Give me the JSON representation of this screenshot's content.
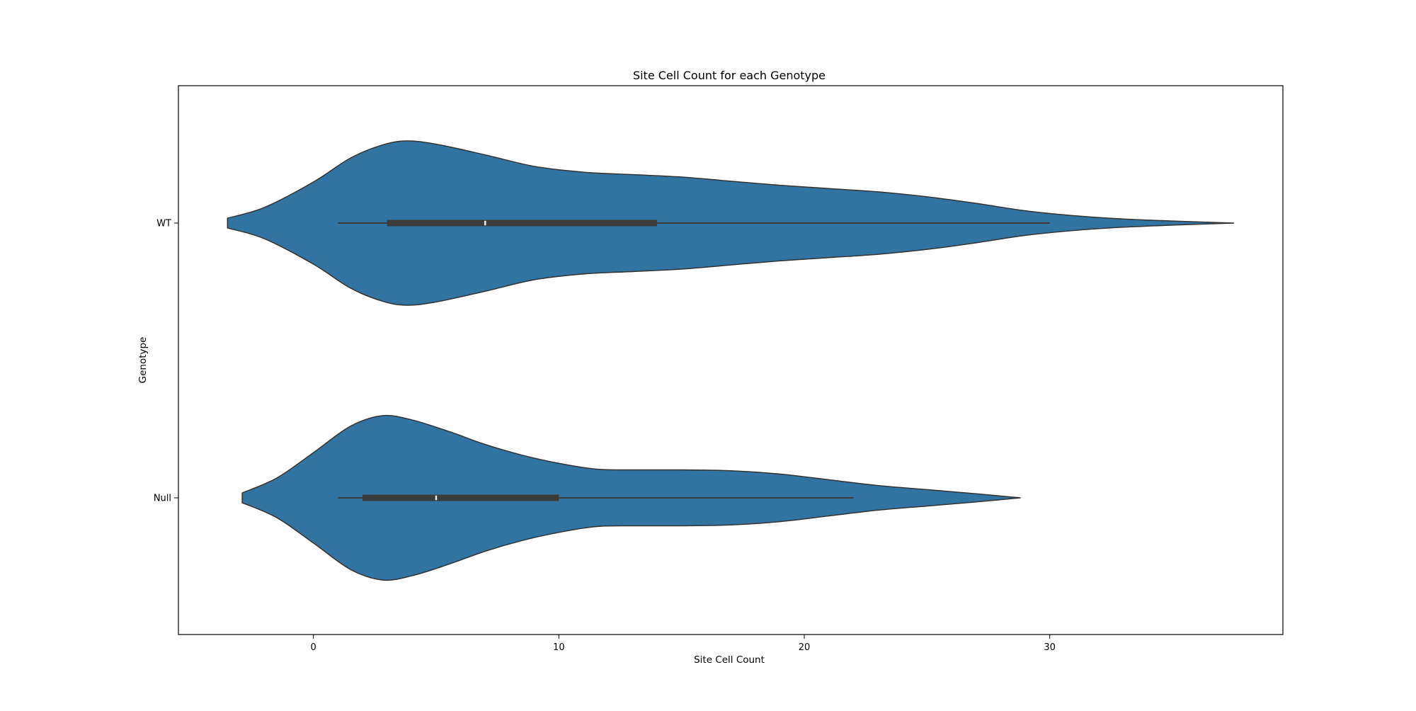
{
  "chart_data": {
    "type": "violin",
    "orientation": "horizontal",
    "title": "Site Cell Count for each Genotype",
    "xlabel": "Site Cell Count",
    "ylabel": "Genotype",
    "xlim": [
      -5.5,
      39.5
    ],
    "xticks": [
      0,
      10,
      20,
      30
    ],
    "categories": [
      "WT",
      "Null"
    ],
    "grid": false,
    "legend": "none",
    "colors": {
      "fill": "#3274a1",
      "outline": "#333333",
      "box": "#3a3a3a",
      "median": "#ffffff",
      "axes": "#000000",
      "background": "#ffffff"
    },
    "violins": [
      {
        "category": "WT",
        "min": 1,
        "q1": 3,
        "median": 7,
        "q3": 14,
        "whisker_high": 30,
        "kde_range": [
          -3.5,
          37.5
        ],
        "density_profile": [
          {
            "x": -3.5,
            "w": 0.06
          },
          {
            "x": -2,
            "w": 0.19
          },
          {
            "x": 0,
            "w": 0.5
          },
          {
            "x": 1.5,
            "w": 0.79
          },
          {
            "x": 2.8,
            "w": 0.95
          },
          {
            "x": 3.8,
            "w": 1.0
          },
          {
            "x": 5,
            "w": 0.96
          },
          {
            "x": 7,
            "w": 0.83
          },
          {
            "x": 9,
            "w": 0.69
          },
          {
            "x": 11,
            "w": 0.62
          },
          {
            "x": 13,
            "w": 0.59
          },
          {
            "x": 15,
            "w": 0.56
          },
          {
            "x": 17,
            "w": 0.51
          },
          {
            "x": 19,
            "w": 0.46
          },
          {
            "x": 21,
            "w": 0.42
          },
          {
            "x": 23,
            "w": 0.38
          },
          {
            "x": 25,
            "w": 0.32
          },
          {
            "x": 27,
            "w": 0.24
          },
          {
            "x": 29,
            "w": 0.15
          },
          {
            "x": 31,
            "w": 0.09
          },
          {
            "x": 33,
            "w": 0.05
          },
          {
            "x": 35,
            "w": 0.025
          },
          {
            "x": 37.5,
            "w": 0.0
          }
        ]
      },
      {
        "category": "Null",
        "min": 1,
        "q1": 2,
        "median": 5,
        "q3": 10,
        "whisker_high": 22,
        "kde_range": [
          -2.9,
          28.8
        ],
        "density_profile": [
          {
            "x": -2.9,
            "w": 0.06
          },
          {
            "x": -1.5,
            "w": 0.24
          },
          {
            "x": 0,
            "w": 0.55
          },
          {
            "x": 1.5,
            "w": 0.87
          },
          {
            "x": 2.8,
            "w": 1.0
          },
          {
            "x": 4,
            "w": 0.95
          },
          {
            "x": 5.5,
            "w": 0.81
          },
          {
            "x": 7,
            "w": 0.65
          },
          {
            "x": 8.5,
            "w": 0.52
          },
          {
            "x": 10,
            "w": 0.42
          },
          {
            "x": 11.5,
            "w": 0.35
          },
          {
            "x": 13,
            "w": 0.34
          },
          {
            "x": 15,
            "w": 0.34
          },
          {
            "x": 17,
            "w": 0.33
          },
          {
            "x": 19,
            "w": 0.29
          },
          {
            "x": 21,
            "w": 0.22
          },
          {
            "x": 23,
            "w": 0.15
          },
          {
            "x": 25,
            "w": 0.1
          },
          {
            "x": 27,
            "w": 0.05
          },
          {
            "x": 28.8,
            "w": 0.0
          }
        ]
      }
    ]
  }
}
